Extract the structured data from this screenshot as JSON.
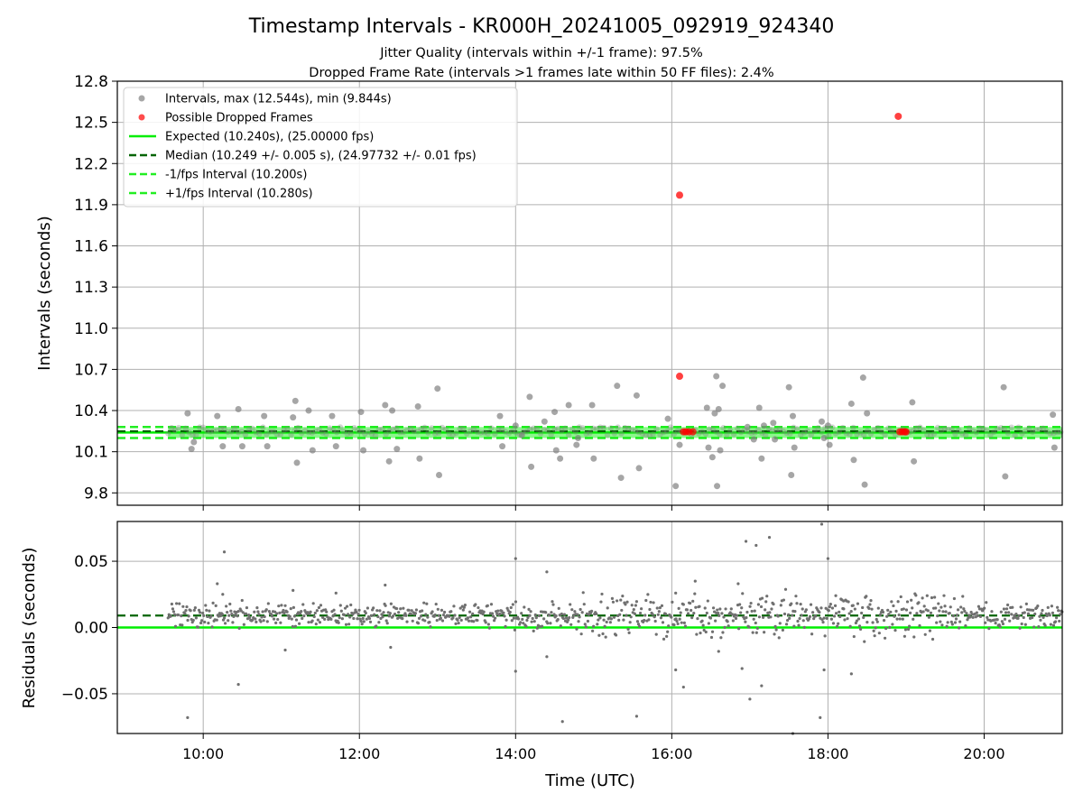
{
  "figure": {
    "title": "Timestamp Intervals - KR000H_20241005_092919_924340",
    "subtitle_1": "Jitter Quality (intervals within +/-1 frame): 97.5%",
    "subtitle_2": "Dropped Frame Rate (intervals >1 frames late within 50 FF files): 2.4%",
    "xlabel": "Time (UTC)"
  },
  "colors": {
    "intervals": "#808080",
    "dropped": "#ff0000",
    "expected": "#00ee00",
    "median": "#006400",
    "fps_band": "#22ee22",
    "grid": "#b0b0b0"
  },
  "chart_data": [
    {
      "type": "scatter",
      "ylabel": "Intervals (seconds)",
      "xlim": [
        8.9,
        21.0
      ],
      "ylim": [
        9.71,
        12.8
      ],
      "yticks": [
        9.8,
        10.1,
        10.4,
        10.7,
        11.0,
        11.3,
        11.6,
        11.9,
        12.2,
        12.5,
        12.8
      ],
      "ytick_labels": [
        "9.8",
        "10.1",
        "10.4",
        "10.7",
        "11.0",
        "11.3",
        "11.6",
        "11.9",
        "12.2",
        "12.5",
        "12.8"
      ],
      "grid": true,
      "legend_position": "top-left",
      "legend": [
        {
          "label": "Intervals, max (12.544s), min (9.844s)",
          "kind": "marker",
          "color": "#808080"
        },
        {
          "label": "Possible Dropped Frames",
          "kind": "marker",
          "color": "#ff0000"
        },
        {
          "label": "Expected (10.240s), (25.00000 fps)",
          "kind": "solid",
          "color": "#00ee00"
        },
        {
          "label": "Median (10.249 +/- 0.005 s), (24.97732 +/- 0.01 fps)",
          "kind": "dashed",
          "color": "#006400"
        },
        {
          "label": "-1/fps Interval (10.200s)",
          "kind": "dashed",
          "color": "#22ee22"
        },
        {
          "label": "+1/fps Interval (10.280s)",
          "kind": "dashed",
          "color": "#22ee22"
        }
      ],
      "reference_lines": {
        "expected": 10.24,
        "median": 10.249,
        "minus_fps": 10.2,
        "plus_fps": 10.28
      },
      "series_start_hour": 9.55,
      "series": [
        {
          "kind": "intervals",
          "x": [
            9.8,
            9.85,
            9.88,
            10.18,
            10.25,
            10.45,
            10.5,
            10.78,
            10.82,
            11.15,
            11.18,
            11.2,
            11.35,
            11.4,
            11.65,
            11.7,
            12.02,
            12.05,
            12.33,
            12.38,
            12.42,
            12.48,
            12.75,
            12.77,
            13.0,
            13.02,
            13.8,
            13.83,
            14.0,
            14.08,
            14.18,
            14.2,
            14.37,
            14.5,
            14.52,
            14.57,
            14.68,
            14.78,
            14.8,
            14.98,
            15.0,
            15.3,
            15.35,
            15.55,
            15.58,
            15.95,
            16.05,
            16.1,
            16.45,
            16.47,
            16.52,
            16.55,
            16.57,
            16.58,
            16.6,
            16.62,
            16.65,
            16.97,
            17.05,
            17.12,
            17.15,
            17.18,
            17.3,
            17.32,
            17.5,
            17.53,
            17.55,
            17.57,
            17.92,
            17.95,
            18.0,
            18.02,
            18.3,
            18.33,
            18.45,
            18.47,
            18.5,
            19.08,
            19.1,
            20.25,
            20.27,
            20.88,
            20.9
          ],
          "y": [
            10.38,
            10.12,
            10.17,
            10.36,
            10.14,
            10.41,
            10.14,
            10.36,
            10.14,
            10.35,
            10.47,
            10.02,
            10.4,
            10.11,
            10.36,
            10.14,
            10.39,
            10.11,
            10.44,
            10.03,
            10.4,
            10.12,
            10.43,
            10.05,
            10.56,
            9.93,
            10.36,
            10.14,
            10.29,
            10.22,
            10.5,
            9.99,
            10.32,
            10.39,
            10.11,
            10.05,
            10.44,
            10.15,
            10.2,
            10.44,
            10.05,
            10.58,
            9.91,
            10.51,
            9.98,
            10.34,
            9.85,
            10.15,
            10.42,
            10.13,
            10.06,
            10.38,
            10.65,
            9.85,
            10.41,
            10.11,
            10.58,
            10.28,
            10.19,
            10.42,
            10.05,
            10.29,
            10.31,
            10.19,
            10.57,
            9.93,
            10.36,
            10.13,
            10.32,
            10.2,
            10.29,
            10.15,
            10.45,
            10.04,
            10.64,
            9.86,
            10.38,
            10.46,
            10.03,
            10.57,
            9.92,
            10.37,
            10.13
          ]
        },
        {
          "kind": "dropped",
          "x": [
            16.1,
            16.1,
            16.15,
            16.18,
            16.22,
            16.27,
            18.9,
            18.92,
            18.95,
            18.98,
            19.0
          ],
          "y": [
            11.97,
            10.65,
            10.245,
            10.245,
            10.245,
            10.245,
            12.544,
            10.245,
            10.245,
            10.245,
            10.245
          ]
        }
      ]
    },
    {
      "type": "scatter",
      "ylabel": "Residuals (seconds)",
      "xlim": [
        8.9,
        21.0
      ],
      "ylim": [
        -0.08,
        0.08
      ],
      "yticks": [
        -0.05,
        0.0,
        0.05
      ],
      "ytick_labels": [
        "−0.05",
        "0.00",
        "0.05"
      ],
      "xticks": [
        10,
        12,
        14,
        16,
        18,
        20
      ],
      "xtick_labels": [
        "10:00",
        "12:00",
        "14:00",
        "16:00",
        "18:00",
        "20:00"
      ],
      "grid": true,
      "reference_lines": {
        "expected": 0.0,
        "median": 0.009
      },
      "series_start_hour": 9.55,
      "series": [
        {
          "kind": "residuals",
          "x": [
            9.8,
            10.18,
            10.25,
            10.27,
            10.45,
            11.15,
            11.05,
            11.7,
            12.33,
            12.4,
            14.0,
            14.0,
            14.4,
            14.4,
            14.6,
            15.55,
            16.05,
            16.05,
            16.15,
            16.3,
            16.6,
            16.85,
            16.9,
            16.95,
            17.0,
            17.08,
            17.15,
            17.25,
            17.55,
            17.9,
            17.92,
            17.95,
            18.0,
            18.1,
            18.2,
            18.3
          ],
          "y": [
            -0.068,
            0.033,
            0.025,
            0.057,
            -0.043,
            0.028,
            -0.017,
            0.026,
            0.032,
            -0.015,
            0.052,
            -0.033,
            0.042,
            -0.022,
            -0.071,
            -0.067,
            -0.032,
            0.026,
            -0.045,
            0.035,
            -0.018,
            0.033,
            -0.031,
            0.065,
            -0.054,
            0.062,
            -0.044,
            0.068,
            -0.08,
            -0.068,
            0.078,
            -0.032,
            0.052,
            0.024,
            0.02,
            -0.035
          ]
        }
      ]
    }
  ]
}
